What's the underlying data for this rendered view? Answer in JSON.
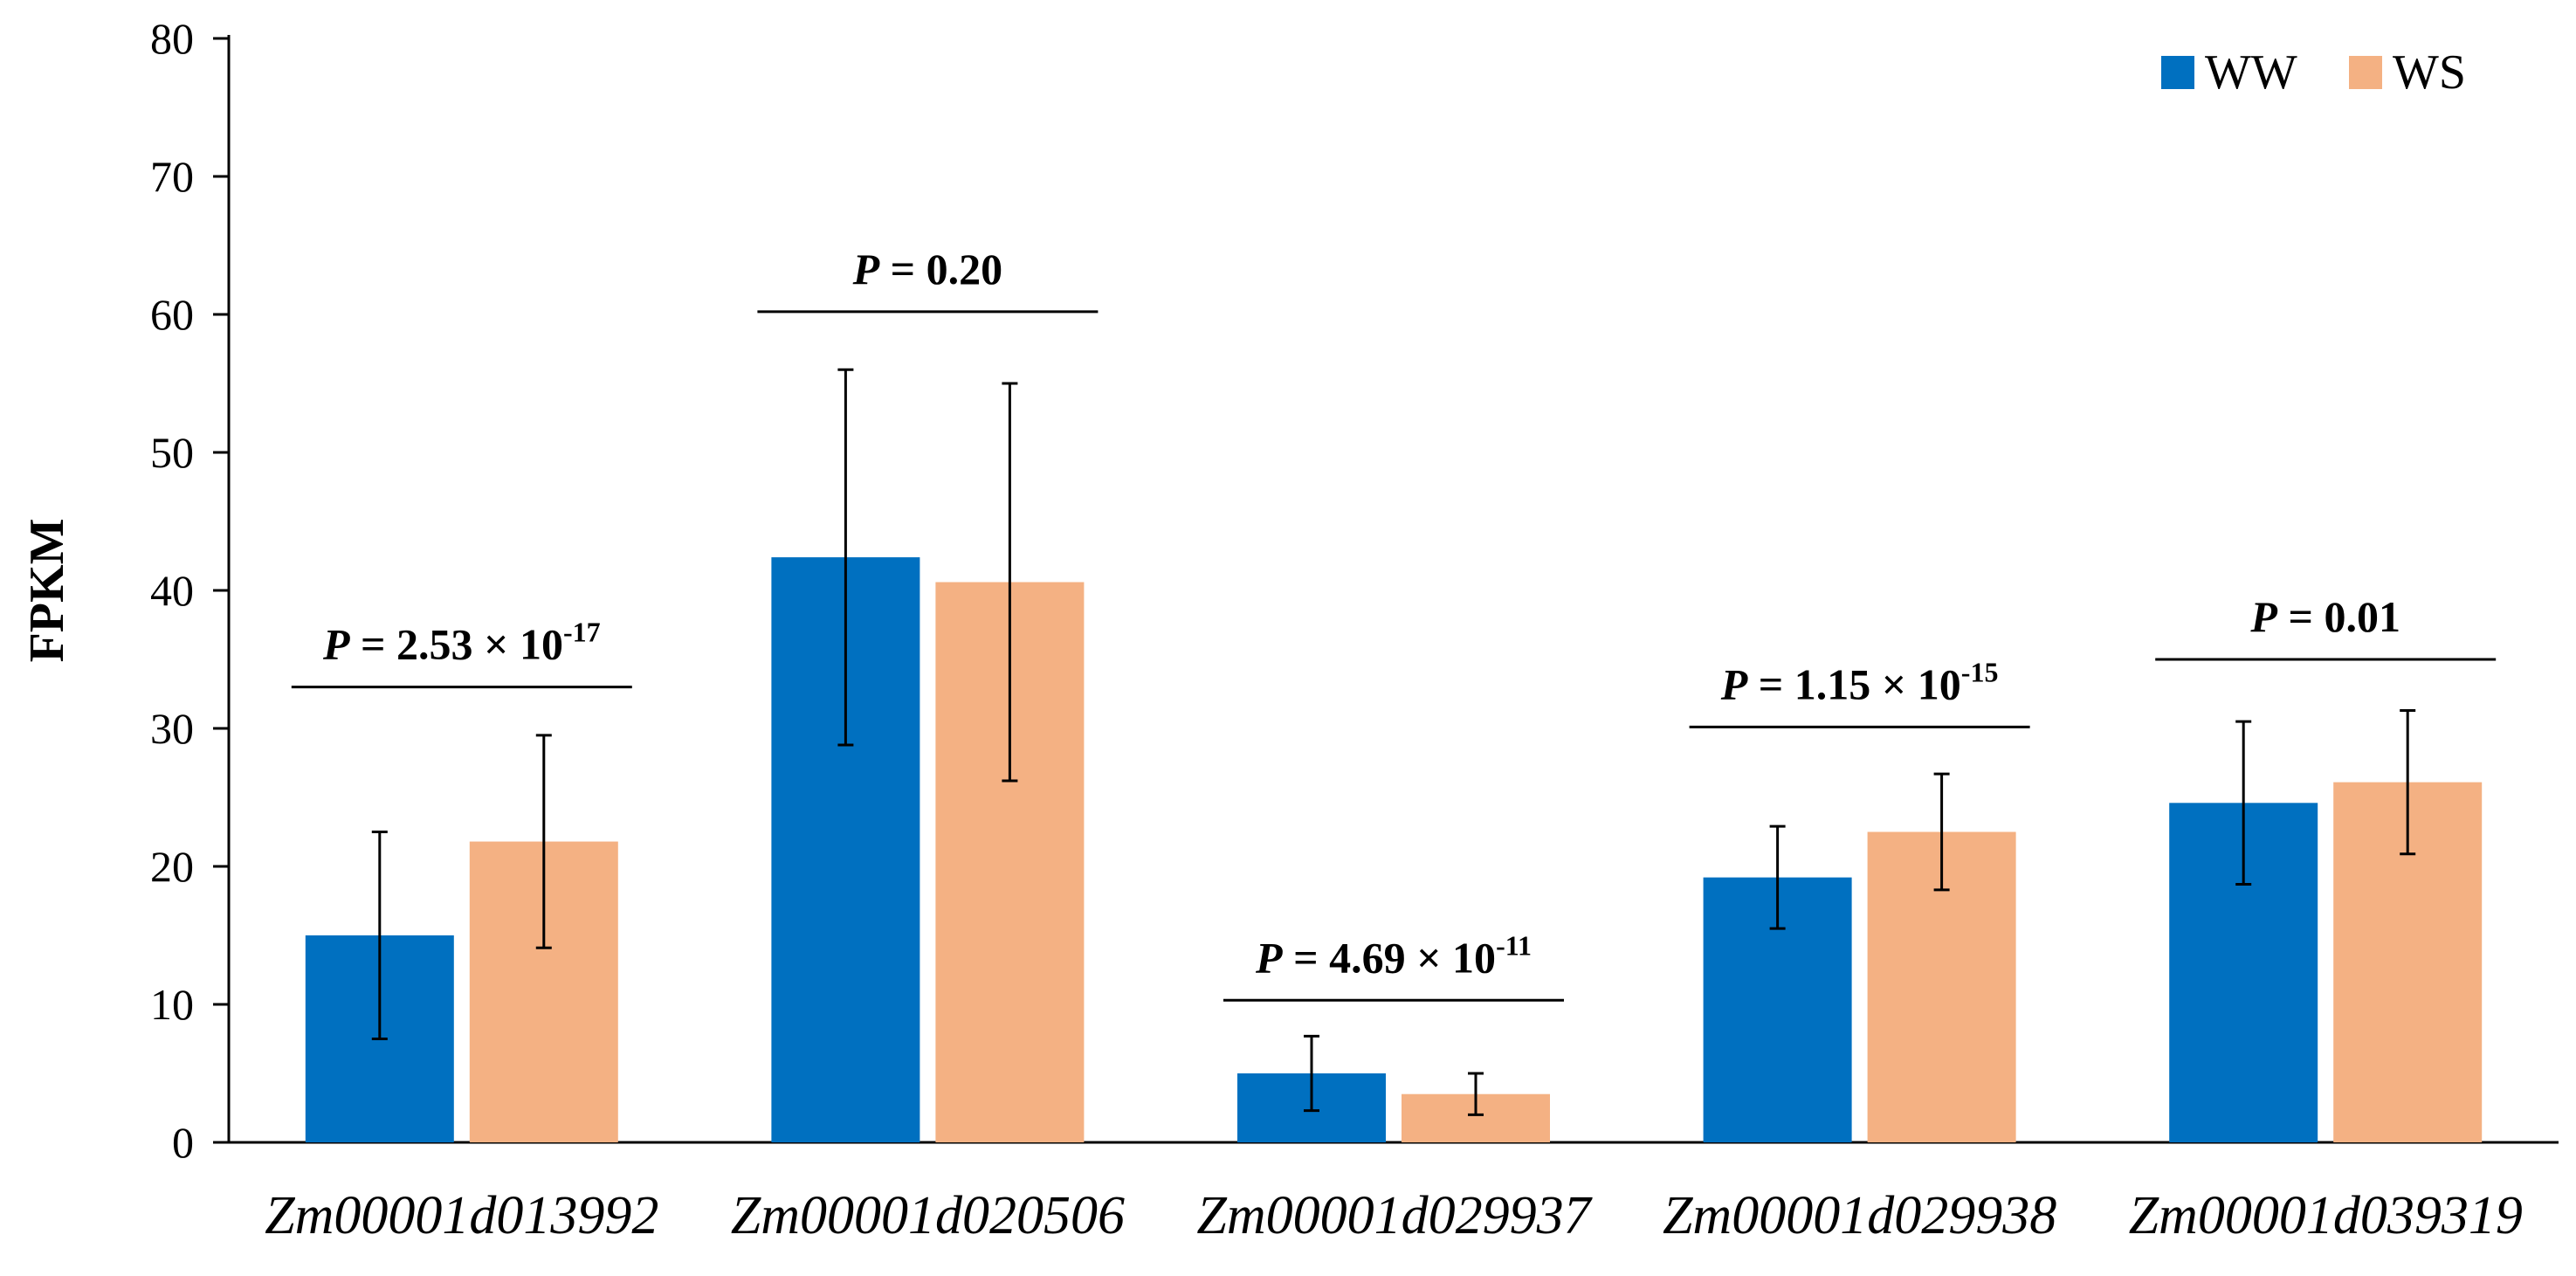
{
  "chart_data": {
    "type": "bar",
    "title": "",
    "xlabel": "",
    "ylabel": "FPKM",
    "ylim": [
      0,
      80
    ],
    "yticks": [
      "0",
      "10",
      "20",
      "30",
      "40",
      "50",
      "60",
      "70",
      "80"
    ],
    "categories": [
      "Zm00001d013992",
      "Zm00001d020506",
      "Zm00001d029937",
      "Zm00001d029938",
      "Zm00001d039319"
    ],
    "series": [
      {
        "name": "WW",
        "color": "#0070C0",
        "values": [
          15.0,
          42.4,
          5.0,
          19.2,
          24.6
        ],
        "errors": [
          7.5,
          13.6,
          2.7,
          3.7,
          5.9
        ]
      },
      {
        "name": "WS",
        "color": "#F4B183",
        "values": [
          21.8,
          40.6,
          3.5,
          22.5,
          26.1
        ],
        "errors": [
          7.7,
          14.4,
          1.5,
          4.2,
          5.2
        ]
      }
    ],
    "legend": {
      "position": "top-right"
    },
    "annotations": [
      {
        "category": "Zm00001d013992",
        "y": 33.0,
        "label_prefix": "P",
        "label_body": " = 2.53 × 10",
        "label_exp": "-17"
      },
      {
        "category": "Zm00001d020506",
        "y": 60.2,
        "label_prefix": "P",
        "label_body": " = 0.20",
        "label_exp": ""
      },
      {
        "category": "Zm00001d029937",
        "y": 10.3,
        "label_prefix": "P",
        "label_body": " = 4.69 × 10",
        "label_exp": "-11"
      },
      {
        "category": "Zm00001d029938",
        "y": 30.1,
        "label_prefix": "P",
        "label_body": " = 1.15 × 10",
        "label_exp": "-15"
      },
      {
        "category": "Zm00001d039319",
        "y": 35.0,
        "label_prefix": "P",
        "label_body": " = 0.01",
        "label_exp": ""
      }
    ]
  }
}
